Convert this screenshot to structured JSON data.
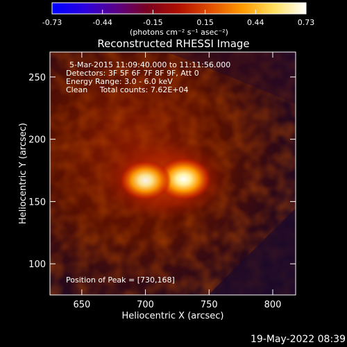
{
  "colorbar": {
    "tick_labels": [
      "-0.73",
      "-0.44",
      "-0.15",
      "0.15",
      "0.44",
      "0.73"
    ],
    "units_label": "(photons cm⁻² s⁻¹ asec⁻²)",
    "range": [
      -0.73,
      0.73
    ],
    "colors": [
      "#0000ff",
      "#2a00e0",
      "#5a008a",
      "#7a0020",
      "#b01000",
      "#e05000",
      "#ff9a00",
      "#ffe060",
      "#ffffff"
    ]
  },
  "chart_data": {
    "type": "heatmap",
    "title": "Reconstructed RHESSI Image",
    "xlabel": "Heliocentric X (arcsec)",
    "ylabel": "Heliocentric Y (arcsec)",
    "xlim": [
      625,
      818
    ],
    "ylim": [
      75,
      270
    ],
    "x_ticks": [
      650,
      700,
      750,
      800
    ],
    "y_ticks": [
      100,
      150,
      200,
      250
    ],
    "annotations": [
      "5-Mar-2015 11:09:40.000 to 11:11:56.000",
      "Detectors: 3F 5F 6F 7F 8F 9F, Att 0",
      "Energy Range: 3.0 - 6.0 keV",
      "Clean     Total counts: 7.62E+04"
    ],
    "peak_label": "Position of Peak = [730,168]",
    "peak": [
      730,
      168
    ],
    "sources": [
      {
        "x": 730,
        "y": 168,
        "intensity": 0.73
      },
      {
        "x": 700,
        "y": 167,
        "intensity": 0.62
      }
    ]
  },
  "timestamp": "19-May-2022 08:39"
}
